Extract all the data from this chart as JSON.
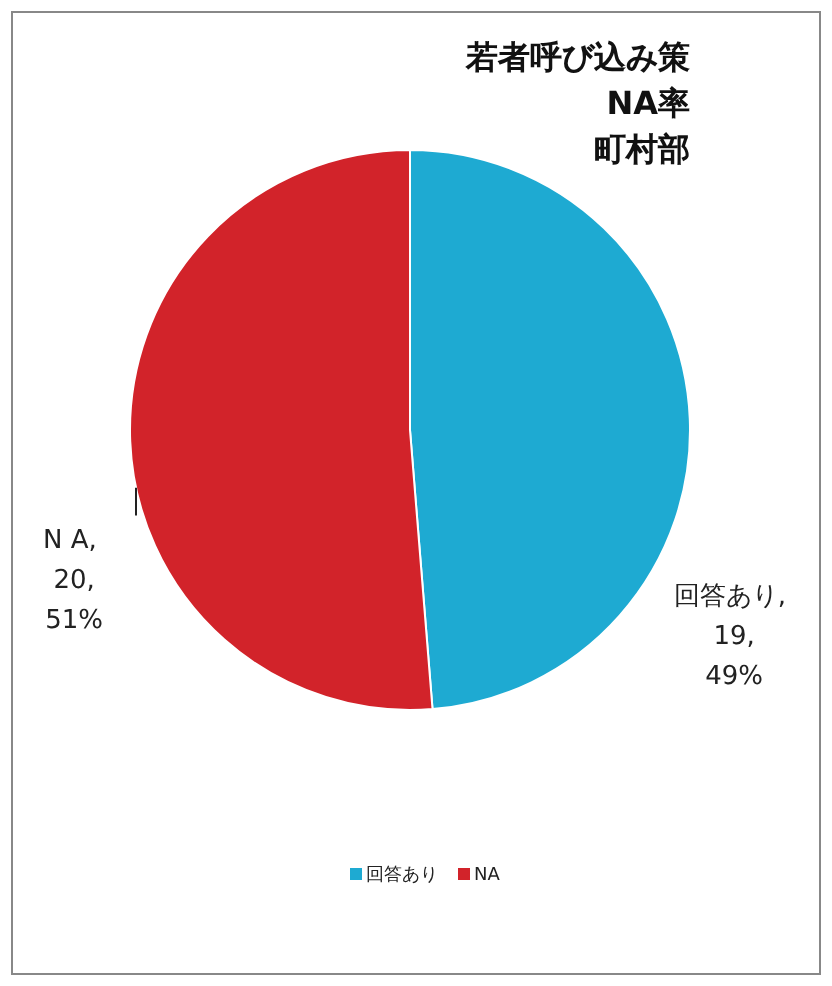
{
  "chart_data": {
    "type": "pie",
    "title": "若者呼び込み策",
    "subtitle": "NA率",
    "annotations": [
      "町村部"
    ],
    "categories": [
      "回答あり",
      "NA"
    ],
    "values": [
      19,
      20
    ],
    "colors": [
      "#1eaad2",
      "#d2232a"
    ],
    "value_labels": [
      "回答あり, 19, 49%",
      "N A, 20, 51%"
    ],
    "legend": "bottom"
  }
}
